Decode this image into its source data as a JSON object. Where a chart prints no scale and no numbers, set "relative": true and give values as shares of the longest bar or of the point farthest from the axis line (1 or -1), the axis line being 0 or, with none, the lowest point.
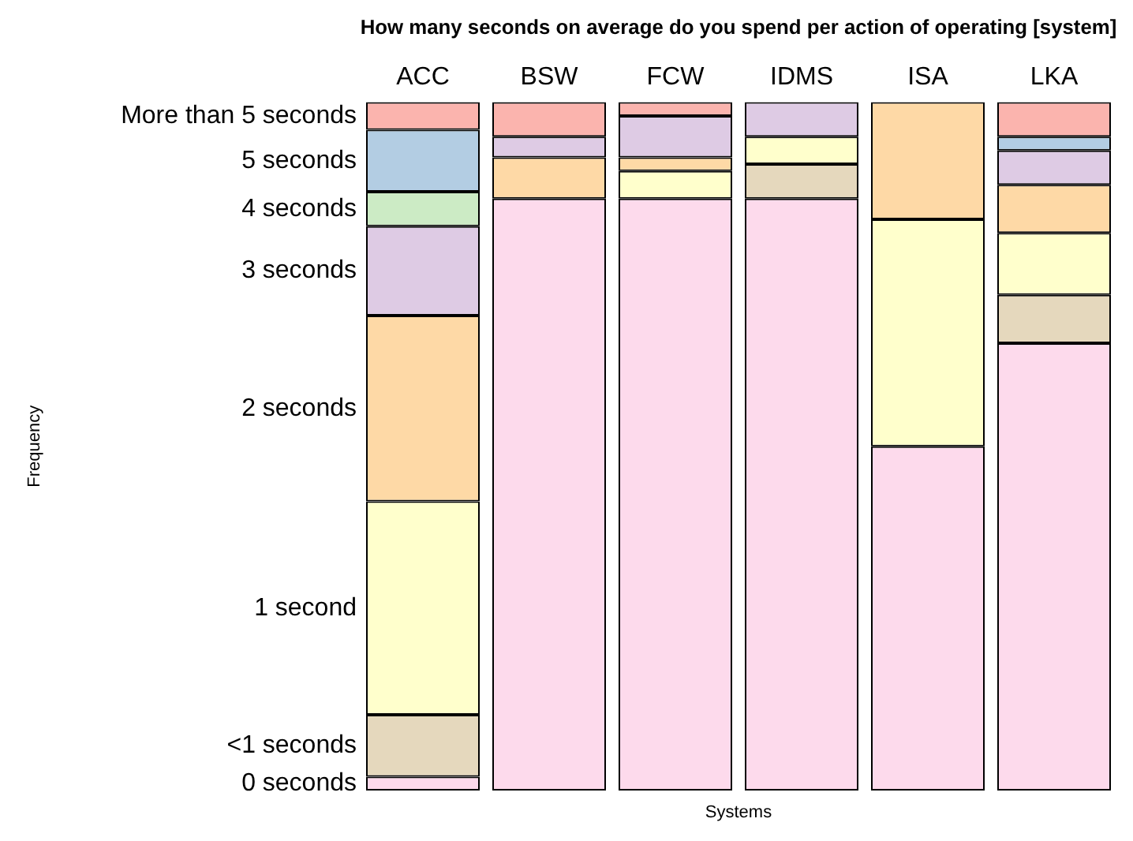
{
  "chart_data": {
    "type": "bar",
    "title": "How many seconds on average do you spend per action of operating [system]",
    "xlabel": "Systems",
    "annotations": [
      "Frequency"
    ],
    "categories": [
      "ACC",
      "BSW",
      "FCW",
      "IDMS",
      "ISA",
      "LKA"
    ],
    "stacked": true,
    "relative": true,
    "legend": false,
    "grid": false,
    "series": [
      {
        "name": "0 seconds",
        "color": "#fddaec",
        "values": [
          0.02,
          0.86,
          0.86,
          0.86,
          0.5,
          0.65
        ]
      },
      {
        "name": "<1 seconds",
        "color": "#e5d8bd",
        "values": [
          0.09,
          0,
          0,
          0.05,
          0,
          0.07
        ]
      },
      {
        "name": "1 second",
        "color": "#ffffcc",
        "values": [
          0.31,
          0,
          0.04,
          0.04,
          0.33,
          0.09
        ]
      },
      {
        "name": "2 seconds",
        "color": "#fed9a6",
        "values": [
          0.27,
          0.06,
          0.02,
          0,
          0.17,
          0.07
        ]
      },
      {
        "name": "3 seconds",
        "color": "#decbe4",
        "values": [
          0.13,
          0.03,
          0.06,
          0.05,
          0,
          0.05
        ]
      },
      {
        "name": "4 seconds",
        "color": "#ccebc5",
        "values": [
          0.05,
          0,
          0,
          0,
          0,
          0
        ]
      },
      {
        "name": "5 seconds",
        "color": "#b3cde3",
        "values": [
          0.09,
          0,
          0,
          0,
          0,
          0.02
        ]
      },
      {
        "name": "More than 5 seconds",
        "color": "#fbb4ae",
        "values": [
          0.04,
          0.05,
          0.02,
          0,
          0,
          0.05
        ]
      }
    ]
  }
}
